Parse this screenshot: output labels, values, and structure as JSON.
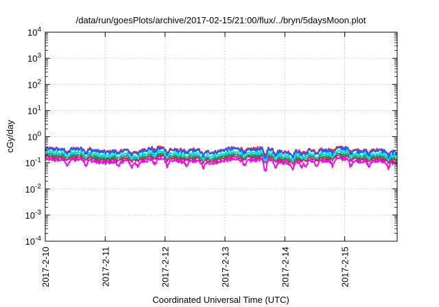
{
  "chart_data": {
    "type": "line",
    "title": "/data/run/goesPlots/archive/2017-02-15/21:00/flux/../bryn/5daysMoon.plot",
    "xlabel": "Coordinated Universal Time (UTC)",
    "ylabel": "cGy/day",
    "y_scale": "log",
    "ylim": [
      0.0001,
      10000
    ],
    "xlim": [
      "2017-02-10",
      "2017-02-15T21:00"
    ],
    "grid": true,
    "y_ticks": [
      {
        "base": "10",
        "exp": "-4"
      },
      {
        "base": "10",
        "exp": "-3"
      },
      {
        "base": "10",
        "exp": "-2"
      },
      {
        "base": "10",
        "exp": "-1"
      },
      {
        "base": "10",
        "exp": "0"
      },
      {
        "base": "10",
        "exp": "1"
      },
      {
        "base": "10",
        "exp": "2"
      },
      {
        "base": "10",
        "exp": "3"
      },
      {
        "base": "10",
        "exp": "4"
      }
    ],
    "x_ticks": [
      "2017-2-10",
      "2017-2-11",
      "2017-2-12",
      "2017-2-13",
      "2017-2-14",
      "2017-2-15"
    ],
    "series": [
      {
        "color": "#ff00ff",
        "base": 0.12,
        "dip_depth": 0.45
      },
      {
        "color": "#b03060",
        "base": 0.15,
        "dip_depth": 0.2
      },
      {
        "color": "#2e8b57",
        "base": 0.18,
        "dip_depth": 0.2
      },
      {
        "color": "#00e0e0",
        "base": 0.22,
        "dip_depth": 0.35
      },
      {
        "color": "#ff2020",
        "base": 0.32,
        "dip_depth": 0.3
      },
      {
        "color": "#2060ff",
        "base": 0.3,
        "dip_depth": 0.35
      }
    ],
    "dips": [
      "2017-02-10T08:55",
      "2017-02-10T16:20",
      "2017-02-11T05:30",
      "2017-02-11T10:35",
      "2017-02-11T13:05",
      "2017-02-11T19:55",
      "2017-02-12T00:55",
      "2017-02-12T08:40",
      "2017-02-12T15:20",
      "2017-02-13T08:00",
      "2017-02-13T15:55",
      "2017-02-13T16:20",
      "2017-02-13T20:15",
      "2017-02-14T03:05",
      "2017-02-14T06:35",
      "2017-02-14T08:20",
      "2017-02-14T12:40",
      "2017-02-14T19:05",
      "2017-02-15T02:20",
      "2017-02-15T09:45",
      "2017-02-15T17:25"
    ]
  }
}
